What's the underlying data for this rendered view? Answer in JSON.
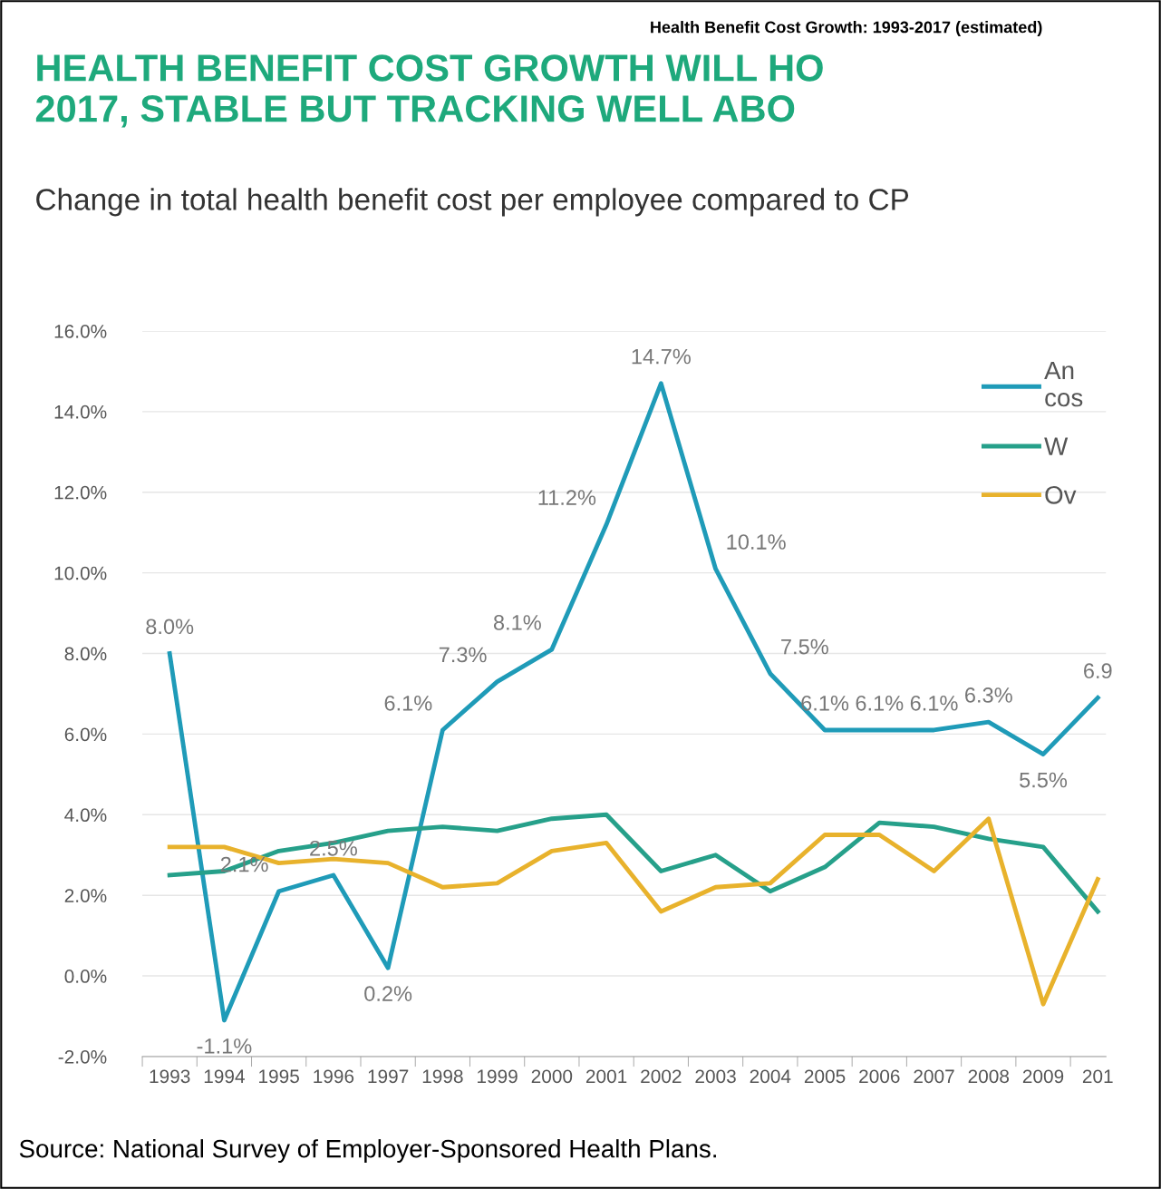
{
  "chart_data": {
    "type": "line",
    "title": "Health Benefit Cost Growth: 1993-2017 (estimated)",
    "subtitle": "HEALTH BENEFIT COST GROWTH WILL HO\n2017, STABLE BUT TRACKING WELL ABO",
    "annotations": [
      "Change in total health benefit cost per employee compared to CP",
      "Source: National Survey of Employer-Sponsored Health Plans."
    ],
    "categories": [
      "1993",
      "1994",
      "1995",
      "1996",
      "1997",
      "1998",
      "1999",
      "2000",
      "2001",
      "2002",
      "2003",
      "2004",
      "2005",
      "2006",
      "2007",
      "2008",
      "2009",
      "201"
    ],
    "series": [
      {
        "name": "An\ncos",
        "color": "#1f9bb8",
        "values": [
          8.0,
          -1.1,
          2.1,
          2.5,
          0.2,
          6.1,
          7.3,
          8.1,
          11.2,
          14.7,
          10.1,
          7.5,
          6.1,
          6.1,
          6.1,
          6.3,
          5.5,
          6.9
        ],
        "value_labels": [
          "8.0%",
          "-1.1%",
          "2.1%",
          "2.5%",
          "0.2%",
          "6.1%",
          "7.3%",
          "8.1%",
          "11.2%",
          "14.7%",
          "10.1%",
          "7.5%",
          "6.1%",
          "6.1%",
          "6.1%",
          "6.3%",
          "5.5%",
          "6.9"
        ]
      },
      {
        "name": "W",
        "color": "#26a08a",
        "values": [
          2.5,
          2.6,
          3.1,
          3.3,
          3.6,
          3.7,
          3.6,
          3.9,
          4.0,
          2.6,
          3.0,
          2.1,
          2.7,
          3.8,
          3.7,
          3.4,
          3.2,
          1.6
        ]
      },
      {
        "name": "Ov",
        "color": "#e8b22c",
        "values": [
          3.2,
          3.2,
          2.8,
          2.9,
          2.8,
          2.2,
          2.3,
          3.1,
          3.3,
          1.6,
          2.2,
          2.3,
          3.5,
          3.5,
          2.6,
          3.9,
          -0.7,
          2.4
        ]
      }
    ],
    "ylim": [
      -2,
      16
    ],
    "yticks": [
      {
        "value": -2,
        "label": "-2.0%"
      },
      {
        "value": 0,
        "label": "0.0%"
      },
      {
        "value": 2,
        "label": "2.0%"
      },
      {
        "value": 4,
        "label": "4.0%"
      },
      {
        "value": 6,
        "label": "6.0%"
      },
      {
        "value": 8,
        "label": "8.0%"
      },
      {
        "value": 10,
        "label": "10.0%"
      },
      {
        "value": 12,
        "label": "12.0%"
      },
      {
        "value": 14,
        "label": "14.0%"
      },
      {
        "value": 16,
        "label": "16.0%"
      }
    ],
    "grid": "y",
    "legend": "top right",
    "marker": "none",
    "line_style": "solid"
  }
}
